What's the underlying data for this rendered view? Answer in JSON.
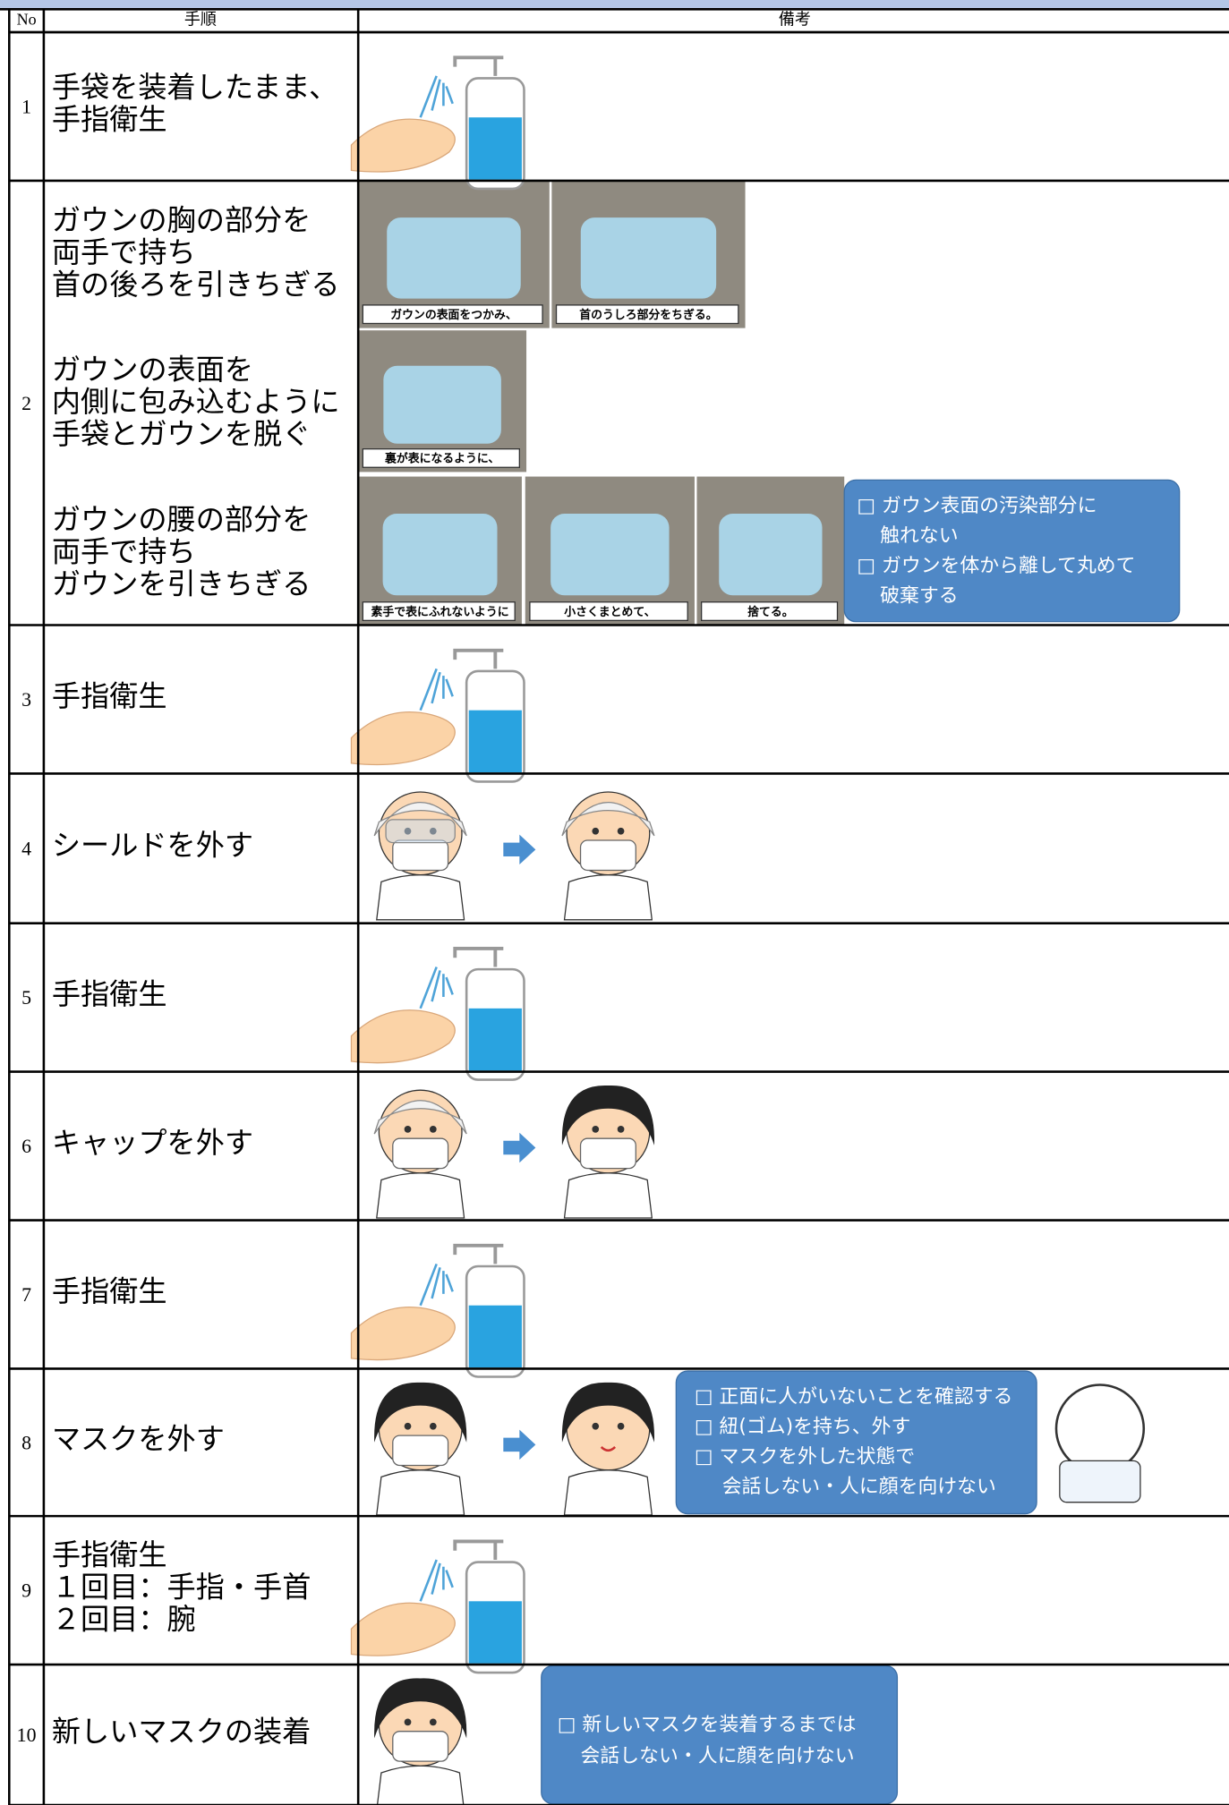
{
  "header": {
    "no": "No",
    "step": "手順",
    "remarks": "備考"
  },
  "rows": [
    {
      "no": "1",
      "step": [
        "手袋を装着したまま、",
        "手指衛生"
      ]
    },
    {
      "no": "2",
      "substeps": [
        {
          "step": [
            "ガウンの胸の部分を",
            "両手で持ち",
            "首の後ろを引きちぎる"
          ],
          "captions": [
            "ガウンの表面をつかみ、",
            "首のうしろ部分をちぎる。"
          ]
        },
        {
          "step": [
            "ガウンの表面を",
            "内側に包み込むように",
            "手袋とガウンを脱ぐ"
          ],
          "captions": [
            "裏が表になるように、"
          ]
        },
        {
          "step": [
            "ガウンの腰の部分を",
            "両手で持ち",
            "ガウンを引きちぎる"
          ],
          "captions": [
            "素手で表にふれないように",
            "小さくまとめて、",
            "捨てる。"
          ]
        }
      ],
      "note": [
        "□ ガウン表面の汚染部分に",
        "触れない",
        "□ ガウンを体から離して丸めて",
        "破棄する"
      ]
    },
    {
      "no": "3",
      "step": [
        "手指衛生"
      ]
    },
    {
      "no": "4",
      "step": [
        "シールドを外す"
      ]
    },
    {
      "no": "5",
      "step": [
        "手指衛生"
      ]
    },
    {
      "no": "6",
      "step": [
        "キャップを外す"
      ]
    },
    {
      "no": "7",
      "step": [
        "手指衛生"
      ]
    },
    {
      "no": "8",
      "step": [
        "マスクを外す"
      ],
      "note": [
        "□ 正面に人がいないことを確認する",
        "□ 紐(ゴム)を持ち、外す",
        "□ マスクを外した状態で",
        "会話しない・人に顔を向けない"
      ]
    },
    {
      "no": "9",
      "step": [
        "手指衛生",
        "１回目：手指・手首",
        "２回目：腕"
      ]
    },
    {
      "no": "10",
      "step": [
        "新しいマスクの装着"
      ],
      "note": [
        "□ 新しいマスクを装着するまでは",
        "会話しない・人に顔を向けない"
      ]
    }
  ]
}
